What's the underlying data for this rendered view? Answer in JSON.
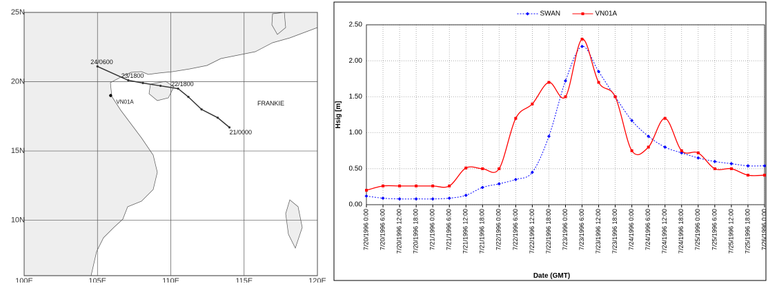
{
  "chart_data": [
    {
      "type": "track",
      "xlim": [
        100,
        120
      ],
      "ylim": [
        6,
        25
      ],
      "xticks": [
        {
          "value": 100,
          "label": "100E"
        },
        {
          "value": 105,
          "label": "105E"
        },
        {
          "value": 110,
          "label": "110E"
        },
        {
          "value": 115,
          "label": "115E"
        },
        {
          "value": 120,
          "label": "120E"
        }
      ],
      "yticks": [
        {
          "value": 10,
          "label": "10N"
        },
        {
          "value": 15,
          "label": "15N"
        },
        {
          "value": 20,
          "label": "20N"
        },
        {
          "value": 25,
          "label": "25N"
        }
      ],
      "track_name": "FRANKIE",
      "x": [
        114.0,
        113.2,
        112.1,
        111.2,
        110.5,
        109.3,
        108.1,
        107.1,
        105.0
      ],
      "y": [
        16.7,
        17.4,
        18.0,
        18.9,
        19.5,
        19.7,
        19.9,
        20.1,
        21.1
      ],
      "point_labels": [
        "21/0000",
        null,
        null,
        null,
        "22/1800",
        null,
        null,
        "23/1800",
        "24/0600"
      ],
      "color": "#333333",
      "station": {
        "name": "VN01A",
        "x": 105.9,
        "y": 19.0
      }
    },
    {
      "type": "line",
      "x_label": "Date (GMT)",
      "y_label": "Hsig [m]",
      "categories": [
        "7/20/1996 0:00",
        "7/20/1996 6:00",
        "7/20/1996 12:00",
        "7/20/1996 18:00",
        "7/21/1996 0:00",
        "7/21/1996 6:00",
        "7/21/1996 12:00",
        "7/21/1996 18:00",
        "7/22/1996 0:00",
        "7/22/1996 6:00",
        "7/22/1996 12:00",
        "7/22/1996 18:00",
        "7/23/1996 0:00",
        "7/23/1996 6:00",
        "7/23/1996 12:00",
        "7/23/1996 18:00",
        "7/24/1996 0:00",
        "7/24/1996 6:00",
        "7/24/1996 12:00",
        "7/24/1996 18:00",
        "7/25/1996 0:00",
        "7/25/1996 6:00",
        "7/25/1996 12:00",
        "7/25/1996 18:00",
        "7/26/1996 0:00"
      ],
      "series": [
        {
          "name": "SWAN",
          "color": "#0000ff",
          "values": [
            0.12,
            0.09,
            0.08,
            0.08,
            0.08,
            0.09,
            0.13,
            0.24,
            0.29,
            0.35,
            0.45,
            0.95,
            1.72,
            2.2,
            1.85,
            1.5,
            1.17,
            0.95,
            0.8,
            0.72,
            0.65,
            0.6,
            0.57,
            0.54,
            0.54
          ]
        },
        {
          "name": "VN01A",
          "color": "#ff0000",
          "values": [
            0.2,
            0.26,
            0.26,
            0.26,
            0.26,
            0.26,
            0.51,
            0.5,
            0.5,
            1.2,
            1.4,
            1.7,
            1.5,
            2.3,
            1.7,
            1.5,
            0.75,
            0.8,
            1.2,
            0.75,
            0.72,
            0.5,
            0.5,
            0.41,
            0.41
          ]
        }
      ],
      "ylim": [
        0,
        2.5
      ],
      "yticks": [
        {
          "value": 0,
          "label": "0.00"
        },
        {
          "value": 0.5,
          "label": "0.50"
        },
        {
          "value": 1,
          "label": "1.00"
        },
        {
          "value": 1.5,
          "label": "1.50"
        },
        {
          "value": 2,
          "label": "2.00"
        },
        {
          "value": 2.5,
          "label": "2.50"
        }
      ],
      "grid": true,
      "legend": "top"
    }
  ]
}
